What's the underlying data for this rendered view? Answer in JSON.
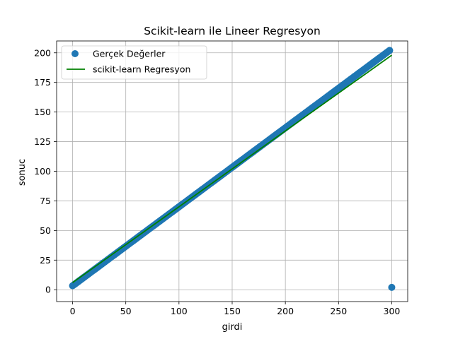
{
  "chart_data": {
    "type": "scatter",
    "title": "Scikit-learn ile Lineer Regresyon",
    "xlabel": "girdi",
    "ylabel": "sonuc",
    "xlim": [
      -15,
      315
    ],
    "ylim": [
      -10,
      210
    ],
    "xticks": [
      0,
      50,
      100,
      150,
      200,
      250,
      300
    ],
    "yticks": [
      0,
      25,
      50,
      75,
      100,
      125,
      150,
      175,
      200
    ],
    "grid": true,
    "legend_position": "top-left",
    "series": [
      {
        "name": "Gerçek Değerler",
        "kind": "scatter",
        "color": "#1f77b4",
        "x_range": [
          0,
          298
        ],
        "x_step": 1,
        "formula_slope": 0.6667,
        "formula_intercept": 3.33,
        "extra_points": [
          [
            300,
            2
          ]
        ]
      },
      {
        "name": "scikit-learn Regresyon",
        "kind": "line",
        "color": "#008000",
        "x": [
          0,
          300
        ],
        "y": [
          6,
          198
        ]
      }
    ]
  }
}
